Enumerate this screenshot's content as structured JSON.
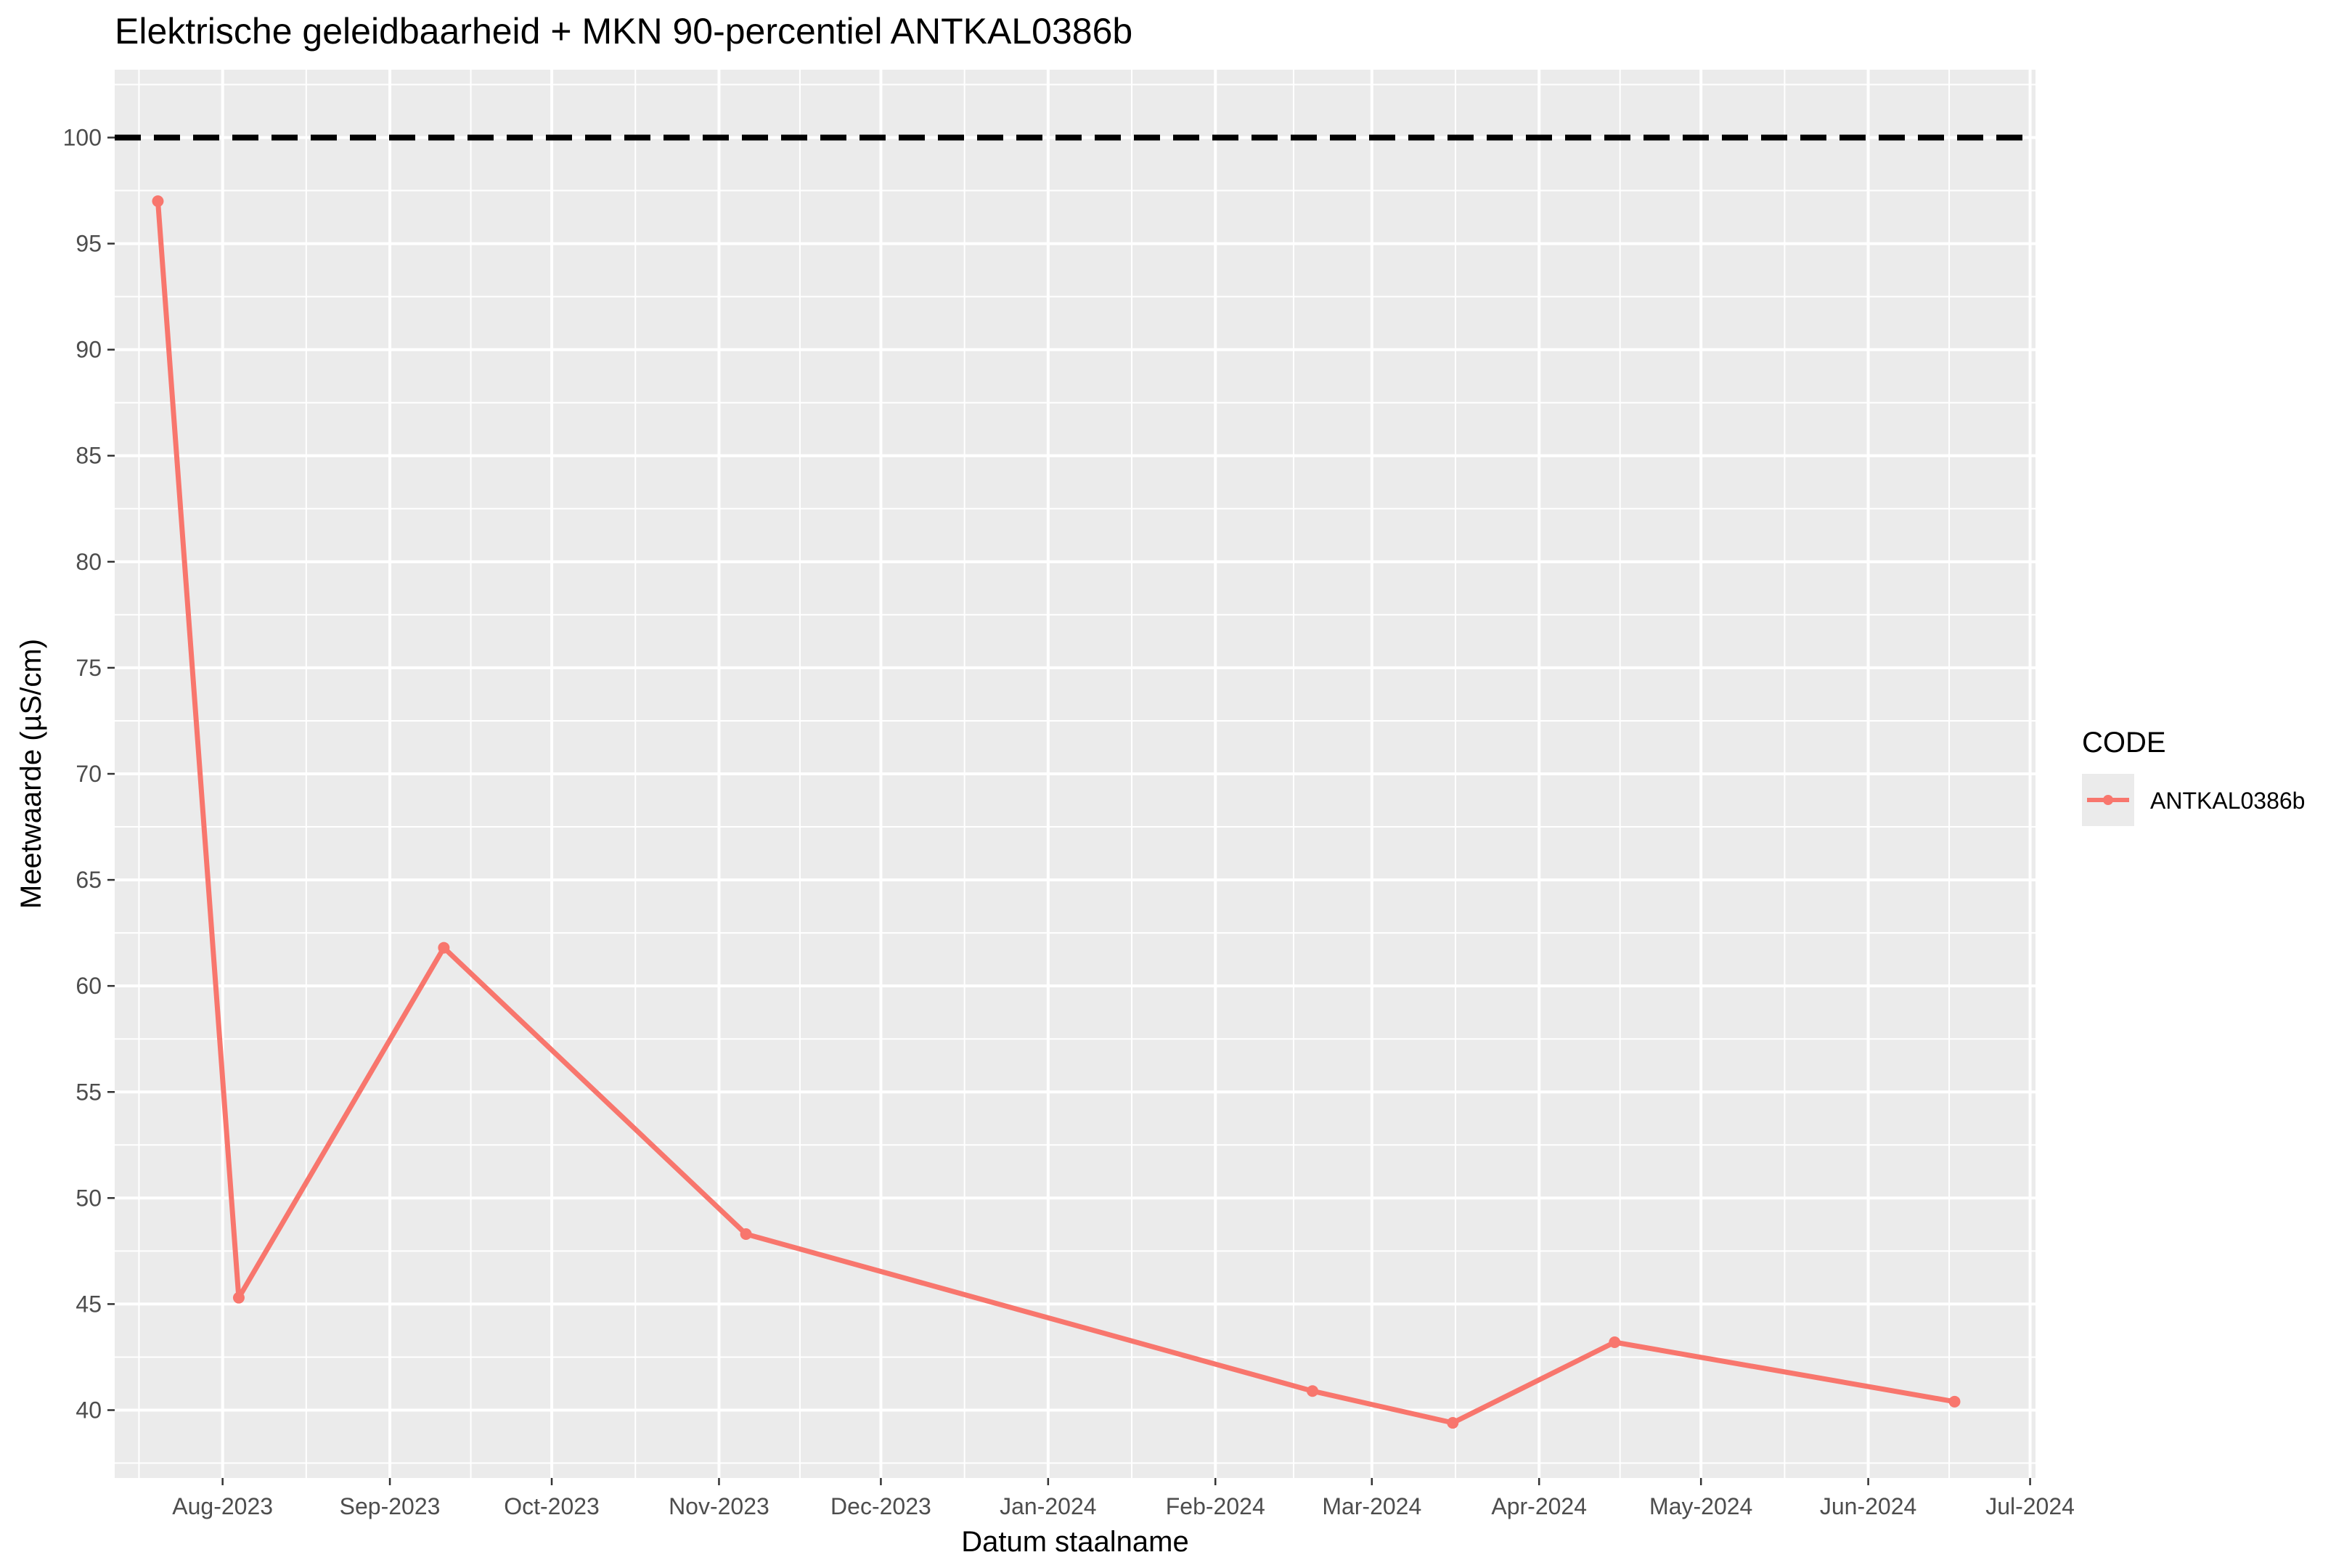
{
  "chart_data": {
    "type": "line",
    "title": "Elektrische geleidbaarheid + MKN 90-percentiel ANTKAL0386b",
    "xlabel": "Datum staalname",
    "ylabel": "Meetwaarde (µS/cm)",
    "x_ticks": [
      "2023-08-01",
      "2023-09-01",
      "2023-10-01",
      "2023-11-01",
      "2023-12-01",
      "2024-01-01",
      "2024-02-01",
      "2024-03-01",
      "2024-04-01",
      "2024-05-01",
      "2024-06-01",
      "2024-07-01"
    ],
    "x_tick_labels": [
      "Aug-2023",
      "Sep-2023",
      "Oct-2023",
      "Nov-2023",
      "Dec-2023",
      "Jan-2024",
      "Feb-2024",
      "Mar-2024",
      "Apr-2024",
      "May-2024",
      "Jun-2024",
      "Jul-2024"
    ],
    "xlim": [
      "2023-07-12",
      "2024-07-02"
    ],
    "y_ticks": [
      40,
      45,
      50,
      55,
      60,
      65,
      70,
      75,
      80,
      85,
      90,
      95,
      100
    ],
    "ylim": [
      36.8,
      103.2
    ],
    "grid": true,
    "legend": {
      "title": "CODE",
      "position": "right"
    },
    "series": [
      {
        "name": "ANTKAL0386b",
        "color": "#F8766D",
        "points": [
          {
            "x": "2023-07-20",
            "y": 97.0
          },
          {
            "x": "2023-08-04",
            "y": 45.3
          },
          {
            "x": "2023-09-11",
            "y": 61.8
          },
          {
            "x": "2023-11-06",
            "y": 48.3
          },
          {
            "x": "2024-02-19",
            "y": 40.9
          },
          {
            "x": "2024-03-16",
            "y": 39.4
          },
          {
            "x": "2024-04-15",
            "y": 43.2
          },
          {
            "x": "2024-06-17",
            "y": 40.4
          }
        ]
      }
    ],
    "threshold": {
      "y": 100,
      "color": "#000000",
      "style": "dashed"
    }
  }
}
